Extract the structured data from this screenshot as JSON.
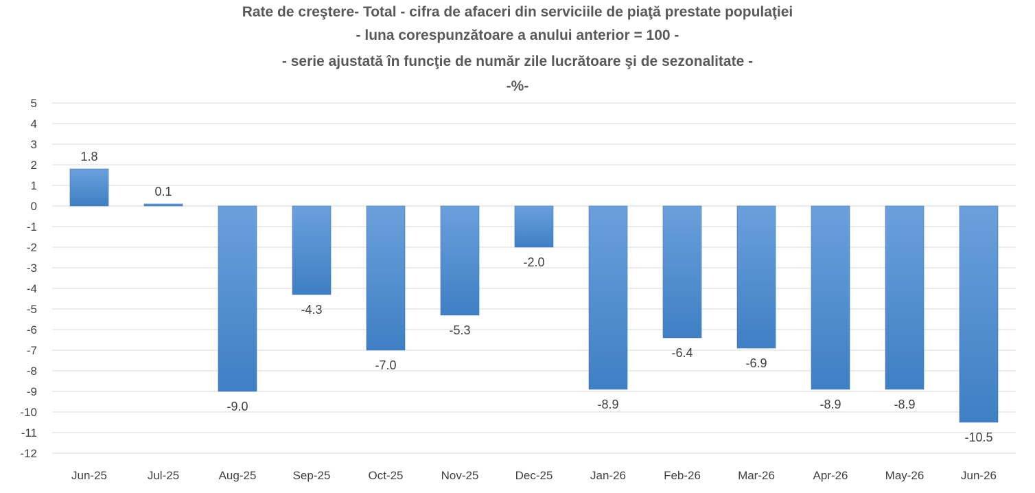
{
  "chart_data": {
    "type": "bar",
    "title_lines": [
      "Rate de creştere- Total -  cifra de afaceri din serviciile de piaţă prestate populaţiei",
      "- luna corespunzătoare a anului anterior = 100 -",
      "- serie ajustată în funcţie de număr zile lucrătoare şi de sezonalitate -",
      "-%-"
    ],
    "categories": [
      "Jun-25",
      "Jul-25",
      "Aug-25",
      "Sep-25",
      "Oct-25",
      "Nov-25",
      "Dec-25",
      "Jan-26",
      "Feb-26",
      "Mar-26",
      "Apr-26",
      "May-26",
      "Jun-26"
    ],
    "values": [
      1.8,
      0.1,
      -9.0,
      -4.3,
      -7.0,
      -5.3,
      -2.0,
      -8.9,
      -6.4,
      -6.9,
      -8.9,
      -8.9,
      -10.5
    ],
    "data_labels": [
      "1.8",
      "0.1",
      "-9.0",
      "-4.3",
      "-7.0",
      "-5.3",
      "-2.0",
      "-8.9",
      "-6.4",
      "-6.9",
      "-8.9",
      "-8.9",
      "-10.5"
    ],
    "ylim": [
      -12,
      5
    ],
    "y_ticks": [
      5,
      4,
      3,
      2,
      1,
      0,
      -1,
      -2,
      -3,
      -4,
      -5,
      -6,
      -7,
      -8,
      -9,
      -10,
      -11,
      -12
    ],
    "grid": true,
    "legend": "none",
    "colors": {
      "bar_top": "#6aa0dc",
      "bar_bottom": "#3f7fc4",
      "grid": "#d9d9d9",
      "text": "#404040",
      "title": "#595959"
    }
  }
}
